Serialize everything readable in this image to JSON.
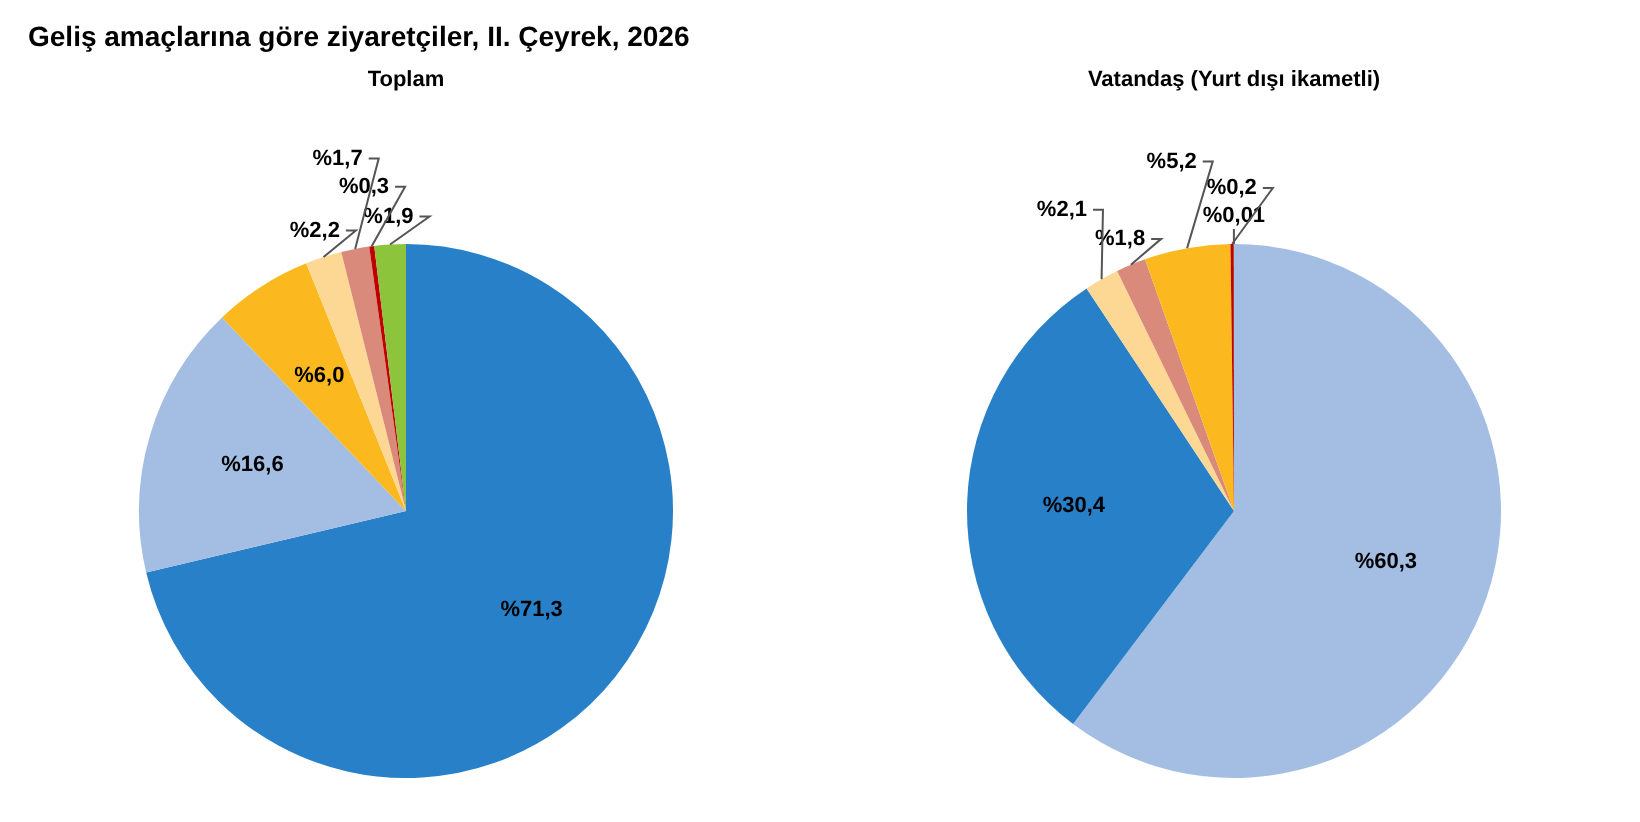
{
  "chart_data": [
    {
      "type": "pie",
      "title": "Toplam",
      "annotations": [
        "Geliş amaçlarına göre ziyaretçiler, II. Çeyrek, 2026"
      ],
      "categories": [
        null,
        null,
        null,
        null,
        null,
        null,
        null
      ],
      "values": [
        71.3,
        16.6,
        6.0,
        2.2,
        1.7,
        0.3,
        1.9
      ],
      "value_labels": [
        "%71,3",
        "%16,6",
        "%6,0",
        "%2,2",
        "%1,7",
        "%0,3",
        "%1,9"
      ],
      "colors": [
        "#2780c8",
        "#a4bde3",
        "#fbb91f",
        "#fcd894",
        "#d98a7b",
        "#c00000",
        "#8cc43c"
      ],
      "legend": false
    },
    {
      "type": "pie",
      "title": "Vatandaş (Yurt dışı ikametli)",
      "categories": [
        null,
        null,
        null,
        null,
        null,
        null,
        null
      ],
      "values": [
        60.3,
        30.4,
        2.1,
        1.8,
        5.2,
        0.2,
        0.01
      ],
      "value_labels": [
        "%60,3",
        "%30,4",
        "%2,1",
        "%1,8",
        "%5,2",
        "%0,2",
        "%0,01"
      ],
      "colors": [
        "#a4bde3",
        "#2780c8",
        "#fcd894",
        "#d98a7b",
        "#fbb91f",
        "#c00000",
        "#8cc43c"
      ],
      "legend": false
    }
  ]
}
